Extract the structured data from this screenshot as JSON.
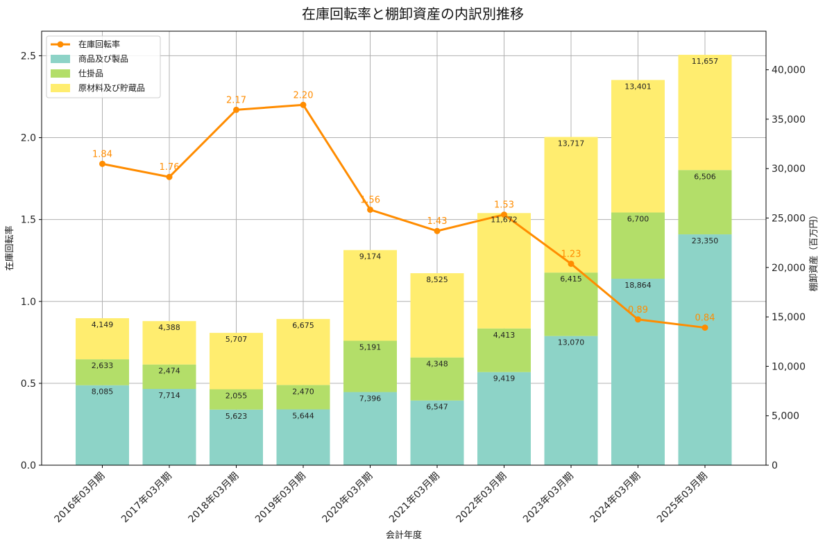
{
  "chart_data": {
    "type": "bar",
    "title": "在庫回転率と棚卸資産の内訳別推移",
    "xlabel": "会計年度",
    "ylabel_left": "在庫回転率",
    "ylabel_right": "棚卸資産（百万円）",
    "categories": [
      "2016年03月期",
      "2017年03月期",
      "2018年03月期",
      "2019年03月期",
      "2020年03月期",
      "2021年03月期",
      "2022年03月期",
      "2023年03月期",
      "2024年03月期",
      "2025年03月期"
    ],
    "stacked": true,
    "grid": true,
    "legend_position": "top-left",
    "ylim_left": [
      0,
      2.65
    ],
    "ylim_right": [
      0,
      43900
    ],
    "yticks_left": [
      "0.0",
      "0.5",
      "1.0",
      "1.5",
      "2.0",
      "2.5"
    ],
    "yticks_right": [
      "0",
      "5,000",
      "10,000",
      "15,000",
      "20,000",
      "25,000",
      "30,000",
      "35,000",
      "40,000"
    ],
    "series": [
      {
        "name": "商品及び製品",
        "kind": "bar",
        "axis": "right",
        "color": "#8dd3c7",
        "values": [
          8085,
          7714,
          5623,
          5644,
          7396,
          6547,
          9419,
          13070,
          18864,
          23350
        ],
        "labels": [
          "8,085",
          "7,714",
          "5,623",
          "5,644",
          "7,396",
          "6,547",
          "9,419",
          "13,070",
          "18,864",
          "23,350"
        ]
      },
      {
        "name": "仕掛品",
        "kind": "bar",
        "axis": "right",
        "color": "#b3de69",
        "values": [
          2633,
          2474,
          2055,
          2470,
          5191,
          4348,
          4413,
          6415,
          6700,
          6506
        ],
        "labels": [
          "2,633",
          "2,474",
          "2,055",
          "2,470",
          "5,191",
          "4,348",
          "4,413",
          "6,415",
          "6,700",
          "6,506"
        ]
      },
      {
        "name": "原材料及び貯蔵品",
        "kind": "bar",
        "axis": "right",
        "color": "#ffed6f",
        "values": [
          4149,
          4388,
          5707,
          6675,
          9174,
          8525,
          11672,
          13717,
          13401,
          11657
        ],
        "labels": [
          "4,149",
          "4,388",
          "5,707",
          "6,675",
          "9,174",
          "8,525",
          "11,672",
          "13,717",
          "13,401",
          "11,657"
        ]
      },
      {
        "name": "在庫回転率",
        "kind": "line",
        "axis": "left",
        "color": "#ff8c00",
        "values": [
          1.84,
          1.76,
          2.17,
          2.2,
          1.56,
          1.43,
          1.53,
          1.23,
          0.89,
          0.84
        ],
        "labels": [
          "1.84",
          "1.76",
          "2.17",
          "2.20",
          "1.56",
          "1.43",
          "1.53",
          "1.23",
          "0.89",
          "0.84"
        ]
      }
    ]
  }
}
